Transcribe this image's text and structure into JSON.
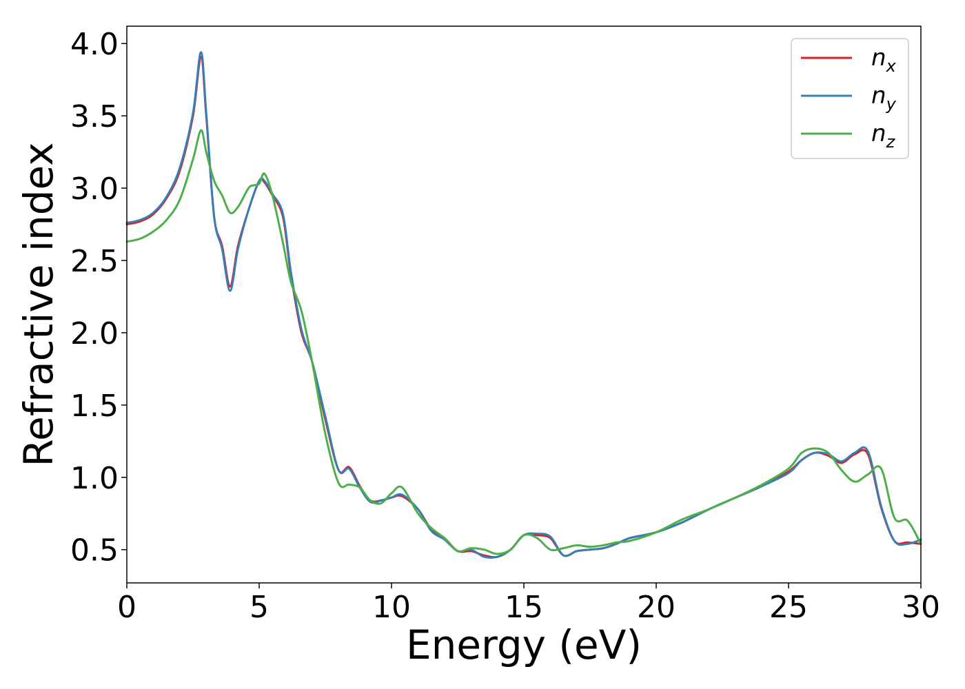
{
  "chart_data": {
    "type": "line",
    "xlabel": "Energy (eV)",
    "ylabel": "Refractive index",
    "xlim": [
      0,
      30
    ],
    "ylim": [
      0.27,
      4.12
    ],
    "xticks": [
      "0",
      "5",
      "10",
      "15",
      "20",
      "25",
      "30"
    ],
    "yticks": [
      "0.5",
      "1.0",
      "1.5",
      "2.0",
      "2.5",
      "3.0",
      "3.5",
      "4.0"
    ],
    "grid": false,
    "legend_position": "top-right",
    "series": [
      {
        "name": "n",
        "subscript": "x",
        "color": "#e41a1c",
        "x": [
          0,
          0.5,
          1,
          1.5,
          2,
          2.5,
          2.8,
          3,
          3.3,
          3.6,
          3.9,
          4.2,
          4.6,
          5,
          5.2,
          5.5,
          5.9,
          6.2,
          6.6,
          7,
          7.5,
          8,
          8.4,
          8.8,
          9.2,
          9.6,
          10,
          10.4,
          11,
          11.5,
          12,
          12.5,
          13,
          13.5,
          14,
          14.5,
          15,
          15.5,
          16,
          16.5,
          17,
          17.5,
          18,
          18.5,
          19,
          20,
          21,
          22,
          23,
          24,
          25,
          25.5,
          26,
          26.5,
          27,
          27.5,
          28,
          28.5,
          29,
          29.5,
          30
        ],
        "y": [
          2.75,
          2.77,
          2.82,
          2.93,
          3.12,
          3.5,
          3.91,
          3.5,
          2.8,
          2.6,
          2.32,
          2.6,
          2.85,
          3.05,
          3.04,
          2.95,
          2.8,
          2.4,
          2.0,
          1.8,
          1.4,
          1.05,
          1.07,
          0.94,
          0.84,
          0.84,
          0.86,
          0.87,
          0.78,
          0.64,
          0.58,
          0.49,
          0.49,
          0.46,
          0.45,
          0.5,
          0.6,
          0.6,
          0.58,
          0.46,
          0.49,
          0.5,
          0.51,
          0.54,
          0.58,
          0.62,
          0.69,
          0.78,
          0.86,
          0.94,
          1.04,
          1.12,
          1.17,
          1.15,
          1.1,
          1.16,
          1.16,
          0.79,
          0.56,
          0.55,
          0.54
        ]
      },
      {
        "name": "n",
        "subscript": "y",
        "color": "#377eb8",
        "x": [
          0,
          0.5,
          1,
          1.5,
          2,
          2.5,
          2.8,
          3,
          3.3,
          3.6,
          3.9,
          4.2,
          4.6,
          5,
          5.2,
          5.5,
          5.9,
          6.2,
          6.6,
          7,
          7.5,
          8,
          8.4,
          8.8,
          9.2,
          9.6,
          10,
          10.4,
          11,
          11.5,
          12,
          12.5,
          13,
          13.5,
          14,
          14.5,
          15,
          15.5,
          16,
          16.5,
          17,
          17.5,
          18,
          18.5,
          19,
          20,
          21,
          22,
          23,
          24,
          25,
          25.5,
          26,
          26.5,
          27,
          27.5,
          28,
          28.5,
          29,
          29.5,
          30
        ],
        "y": [
          2.76,
          2.78,
          2.83,
          2.94,
          3.14,
          3.52,
          3.94,
          3.52,
          2.8,
          2.58,
          2.29,
          2.58,
          2.85,
          3.05,
          3.05,
          2.96,
          2.82,
          2.42,
          2.02,
          1.8,
          1.42,
          1.05,
          1.06,
          0.93,
          0.83,
          0.84,
          0.86,
          0.88,
          0.78,
          0.63,
          0.57,
          0.49,
          0.5,
          0.45,
          0.45,
          0.5,
          0.6,
          0.61,
          0.59,
          0.46,
          0.49,
          0.5,
          0.51,
          0.54,
          0.58,
          0.62,
          0.69,
          0.78,
          0.86,
          0.94,
          1.03,
          1.12,
          1.17,
          1.16,
          1.11,
          1.17,
          1.18,
          0.8,
          0.56,
          0.54,
          0.57
        ]
      },
      {
        "name": "n",
        "subscript": "z",
        "color": "#4daf4a",
        "x": [
          0,
          0.5,
          1,
          1.5,
          2,
          2.5,
          2.8,
          3,
          3.3,
          3.6,
          3.9,
          4.2,
          4.6,
          4.8,
          5,
          5.2,
          5.5,
          5.9,
          6.2,
          6.6,
          7,
          7.5,
          8,
          8.4,
          8.8,
          9.2,
          9.6,
          10,
          10.4,
          11,
          11.5,
          12,
          12.5,
          13,
          13.5,
          14,
          14.5,
          15,
          15.5,
          16,
          16.5,
          17,
          17.5,
          18,
          18.5,
          19,
          20,
          21,
          22,
          23,
          24,
          25,
          25.5,
          26,
          26.5,
          27,
          27.5,
          28,
          28.5,
          29,
          29.5,
          30
        ],
        "y": [
          2.63,
          2.65,
          2.7,
          2.78,
          2.92,
          3.2,
          3.4,
          3.25,
          3.05,
          2.95,
          2.83,
          2.87,
          3.0,
          3.02,
          3.03,
          3.1,
          2.95,
          2.62,
          2.35,
          2.15,
          1.8,
          1.3,
          0.96,
          0.95,
          0.93,
          0.84,
          0.82,
          0.89,
          0.93,
          0.75,
          0.65,
          0.58,
          0.49,
          0.51,
          0.5,
          0.47,
          0.5,
          0.6,
          0.58,
          0.5,
          0.51,
          0.53,
          0.52,
          0.53,
          0.55,
          0.56,
          0.62,
          0.71,
          0.78,
          0.86,
          0.95,
          1.06,
          1.17,
          1.2,
          1.17,
          1.05,
          0.97,
          1.02,
          1.06,
          0.72,
          0.7,
          0.54
        ]
      }
    ]
  }
}
